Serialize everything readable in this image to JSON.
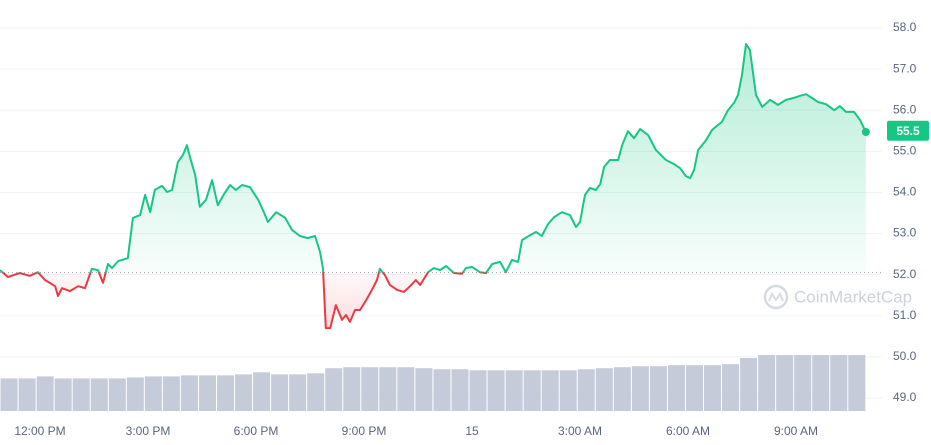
{
  "chart_data": {
    "type": "line",
    "x": [
      -1.11,
      -0.89,
      -0.56,
      -0.28,
      -0.06,
      0.14,
      0.42,
      0.5,
      0.61,
      0.83,
      1.06,
      1.25,
      1.44,
      1.61,
      1.75,
      1.89,
      2.0,
      2.17,
      2.44,
      2.58,
      2.78,
      2.92,
      3.06,
      3.19,
      3.39,
      3.53,
      3.67,
      3.83,
      3.97,
      4.08,
      4.19,
      4.31,
      4.44,
      4.61,
      4.78,
      4.94,
      5.11,
      5.28,
      5.44,
      5.61,
      5.83,
      6.06,
      6.22,
      6.33,
      6.56,
      6.81,
      7.0,
      7.22,
      7.44,
      7.64,
      7.78,
      7.86,
      7.94,
      8.06,
      8.22,
      8.39,
      8.5,
      8.61,
      8.75,
      8.89,
      9.06,
      9.22,
      9.36,
      9.44,
      9.58,
      9.72,
      9.92,
      10.11,
      10.28,
      10.44,
      10.56,
      10.78,
      10.94,
      11.11,
      11.28,
      11.5,
      11.72,
      11.83,
      12.0,
      12.22,
      12.39,
      12.56,
      12.78,
      12.94,
      13.11,
      13.28,
      13.39,
      13.61,
      13.78,
      13.94,
      14.11,
      14.28,
      14.5,
      14.72,
      14.89,
      15.0,
      15.14,
      15.28,
      15.44,
      15.56,
      15.67,
      15.83,
      16.06,
      16.17,
      16.33,
      16.5,
      16.67,
      16.89,
      17.11,
      17.39,
      17.61,
      17.78,
      17.94,
      18.06,
      18.17,
      18.28,
      18.5,
      18.67,
      18.83,
      18.94,
      19.11,
      19.28,
      19.39,
      19.5,
      19.61,
      19.72,
      19.89,
      20.06,
      20.28,
      20.5,
      20.72,
      20.94,
      21.11,
      21.28,
      21.44,
      21.61,
      21.83,
      22.06,
      22.22,
      22.39,
      22.61,
      22.78,
      22.94
    ],
    "series": [
      {
        "color": "#16c784",
        "down_color": "#ea3943",
        "values": [
          52.11,
          51.94,
          52.04,
          51.97,
          52.06,
          51.87,
          51.72,
          51.48,
          51.67,
          51.6,
          51.72,
          51.67,
          52.14,
          52.11,
          51.8,
          52.26,
          52.16,
          52.33,
          52.4,
          53.38,
          53.45,
          53.94,
          53.52,
          54.06,
          54.16,
          54.01,
          54.06,
          54.74,
          54.91,
          55.15,
          54.79,
          54.42,
          53.65,
          53.82,
          54.3,
          53.69,
          53.96,
          54.18,
          54.06,
          54.18,
          54.13,
          53.82,
          53.52,
          53.28,
          53.52,
          53.38,
          53.09,
          52.94,
          52.89,
          52.94,
          52.55,
          52.14,
          50.7,
          50.7,
          51.26,
          50.9,
          51.02,
          50.85,
          51.14,
          51.14,
          51.38,
          51.63,
          51.87,
          52.14,
          51.99,
          51.75,
          51.63,
          51.58,
          51.72,
          51.87,
          51.75,
          52.06,
          52.16,
          52.11,
          52.21,
          52.04,
          52.02,
          52.16,
          52.19,
          52.06,
          52.04,
          52.26,
          52.31,
          52.06,
          52.36,
          52.31,
          52.84,
          52.96,
          53.04,
          52.94,
          53.23,
          53.4,
          53.52,
          53.45,
          53.16,
          53.28,
          53.94,
          54.11,
          54.06,
          54.2,
          54.62,
          54.79,
          54.79,
          55.15,
          55.49,
          55.32,
          55.54,
          55.4,
          55.03,
          54.79,
          54.69,
          54.59,
          54.4,
          54.35,
          54.55,
          55.03,
          55.27,
          55.52,
          55.64,
          55.71,
          56.0,
          56.18,
          56.37,
          56.86,
          57.61,
          57.47,
          56.37,
          56.08,
          56.25,
          56.13,
          56.25,
          56.3,
          56.35,
          56.39,
          56.3,
          56.2,
          56.15,
          56.0,
          56.1,
          55.96,
          55.96,
          55.76,
          55.47
        ]
      }
    ],
    "baseline": 52.05,
    "current_price": 55.5,
    "volume": {
      "color": "#c5cbd8",
      "values": [
        32,
        32,
        34,
        32,
        32,
        32,
        32,
        33,
        34,
        34,
        35,
        35,
        35,
        36,
        38,
        36,
        36,
        37,
        42,
        43,
        43,
        43,
        43,
        42,
        41,
        41,
        40,
        40,
        40,
        40,
        40,
        40,
        41,
        42,
        43,
        44,
        44,
        45,
        45,
        45,
        46,
        52,
        55,
        55,
        55,
        55,
        55,
        55
      ]
    },
    "xlim": [
      -1.1,
      23.2
    ],
    "xticks": [
      {
        "value": 0,
        "label": "12:00 PM"
      },
      {
        "value": 3,
        "label": "3:00 PM"
      },
      {
        "value": 6,
        "label": "6:00 PM"
      },
      {
        "value": 9,
        "label": "9:00 PM"
      },
      {
        "value": 12,
        "label": "15"
      },
      {
        "value": 15,
        "label": "3:00 AM"
      },
      {
        "value": 18,
        "label": "6:00 AM"
      },
      {
        "value": 21,
        "label": "9:00 AM"
      }
    ],
    "ylim": [
      48.5,
      58.5
    ],
    "yticks": [
      {
        "value": 49,
        "label": "49.0"
      },
      {
        "value": 50,
        "label": "50.0"
      },
      {
        "value": 51,
        "label": "51.0"
      },
      {
        "value": 52,
        "label": "52.0"
      },
      {
        "value": 53,
        "label": "53.0"
      },
      {
        "value": 54,
        "label": "54.0"
      },
      {
        "value": 55,
        "label": "55.0"
      },
      {
        "value": 56,
        "label": "56.0"
      },
      {
        "value": 57,
        "label": "57.0"
      },
      {
        "value": 58,
        "label": "58.0"
      }
    ],
    "grid": true,
    "watermark": "CoinMarketCap"
  }
}
